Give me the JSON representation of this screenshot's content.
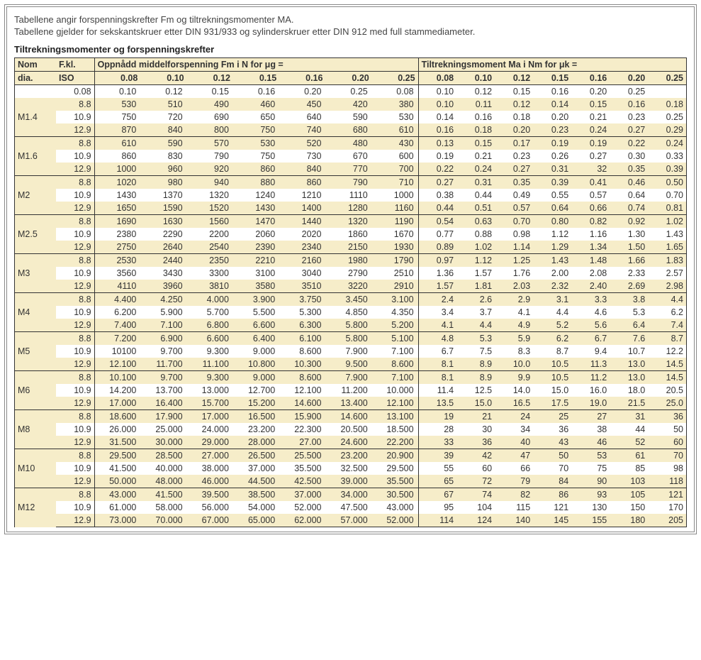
{
  "intro_line1": "Tabellene angir forspenningskrefter Fm og tiltrekningsmomenter MA.",
  "intro_line2": "Tabellene gjelder for sekskantskruer etter DIN 931/933 og sylinderskruer etter DIN 912 med full stammediameter.",
  "section_title": "Tiltrekningsmomenter og forspenningskrefter",
  "col_dia_l1": "Nom",
  "col_dia_l2": "dia.",
  "col_iso_l1": "F.kl.",
  "col_iso_l2": "ISO",
  "fm_header": "Oppnådd middelforspenning Fm i N for μg =",
  "ma_header": "Tiltrekningsmoment Ma i Nm for μk =",
  "mu_values": [
    "0.08",
    "0.10",
    "0.12",
    "0.15",
    "0.16",
    "0.20",
    "0.25"
  ],
  "extra_top_row": {
    "iso": "0.08",
    "fm": [
      "0.10",
      "0.12",
      "0.15",
      "0.16",
      "0.20",
      "0.25",
      "0.08"
    ],
    "ma": [
      "0.10",
      "0.12",
      "0.15",
      "0.16",
      "0.20",
      "0.25",
      ""
    ]
  },
  "groups": [
    {
      "dia": "M1.4",
      "rows": [
        {
          "iso": "8.8",
          "fm": [
            "530",
            "510",
            "490",
            "460",
            "450",
            "420",
            "380"
          ],
          "ma": [
            "0.10",
            "0.11",
            "0.12",
            "0.14",
            "0.15",
            "0.16",
            "0.18"
          ]
        },
        {
          "iso": "10.9",
          "fm": [
            "750",
            "720",
            "690",
            "650",
            "640",
            "590",
            "530"
          ],
          "ma": [
            "0.14",
            "0.16",
            "0.18",
            "0.20",
            "0.21",
            "0.23",
            "0.25"
          ]
        },
        {
          "iso": "12.9",
          "fm": [
            "870",
            "840",
            "800",
            "750",
            "740",
            "680",
            "610"
          ],
          "ma": [
            "0.16",
            "0.18",
            "0.20",
            "0.23",
            "0.24",
            "0.27",
            "0.29"
          ]
        }
      ]
    },
    {
      "dia": "M1.6",
      "rows": [
        {
          "iso": "8.8",
          "fm": [
            "610",
            "590",
            "570",
            "530",
            "520",
            "480",
            "430"
          ],
          "ma": [
            "0.13",
            "0.15",
            "0.17",
            "0.19",
            "0.19",
            "0.22",
            "0.24"
          ]
        },
        {
          "iso": "10.9",
          "fm": [
            "860",
            "830",
            "790",
            "750",
            "730",
            "670",
            "600"
          ],
          "ma": [
            "0.19",
            "0.21",
            "0.23",
            "0.26",
            "0.27",
            "0.30",
            "0.33"
          ]
        },
        {
          "iso": "12.9",
          "fm": [
            "1000",
            "960",
            "920",
            "860",
            "840",
            "770",
            "700"
          ],
          "ma": [
            "0.22",
            "0.24",
            "0.27",
            "0.31",
            "32",
            "0.35",
            "0.39"
          ]
        }
      ]
    },
    {
      "dia": "M2",
      "rows": [
        {
          "iso": "8.8",
          "fm": [
            "1020",
            "980",
            "940",
            "880",
            "860",
            "790",
            "710"
          ],
          "ma": [
            "0.27",
            "0.31",
            "0.35",
            "0.39",
            "0.41",
            "0.46",
            "0.50"
          ]
        },
        {
          "iso": "10.9",
          "fm": [
            "1430",
            "1370",
            "1320",
            "1240",
            "1210",
            "1110",
            "1000"
          ],
          "ma": [
            "0.38",
            "0.44",
            "0.49",
            "0.55",
            "0.57",
            "0.64",
            "0.70"
          ]
        },
        {
          "iso": "12.9",
          "fm": [
            "1650",
            "1590",
            "1520",
            "1430",
            "1400",
            "1280",
            "1160"
          ],
          "ma": [
            "0.44",
            "0.51",
            "0.57",
            "0.64",
            "0.66",
            "0.74",
            "0.81"
          ]
        }
      ]
    },
    {
      "dia": "M2.5",
      "rows": [
        {
          "iso": "8.8",
          "fm": [
            "1690",
            "1630",
            "1560",
            "1470",
            "1440",
            "1320",
            "1190"
          ],
          "ma": [
            "0.54",
            "0.63",
            "0.70",
            "0.80",
            "0.82",
            "0.92",
            "1.02"
          ]
        },
        {
          "iso": "10.9",
          "fm": [
            "2380",
            "2290",
            "2200",
            "2060",
            "2020",
            "1860",
            "1670"
          ],
          "ma": [
            "0.77",
            "0.88",
            "0.98",
            "1.12",
            "1.16",
            "1.30",
            "1.43"
          ]
        },
        {
          "iso": "12.9",
          "fm": [
            "2750",
            "2640",
            "2540",
            "2390",
            "2340",
            "2150",
            "1930"
          ],
          "ma": [
            "0.89",
            "1.02",
            "1.14",
            "1.29",
            "1.34",
            "1.50",
            "1.65"
          ]
        }
      ]
    },
    {
      "dia": "M3",
      "rows": [
        {
          "iso": "8.8",
          "fm": [
            "2530",
            "2440",
            "2350",
            "2210",
            "2160",
            "1980",
            "1790"
          ],
          "ma": [
            "0.97",
            "1.12",
            "1.25",
            "1.43",
            "1.48",
            "1.66",
            "1.83"
          ]
        },
        {
          "iso": "10.9",
          "fm": [
            "3560",
            "3430",
            "3300",
            "3100",
            "3040",
            "2790",
            "2510"
          ],
          "ma": [
            "1.36",
            "1.57",
            "1.76",
            "2.00",
            "2.08",
            "2.33",
            "2.57"
          ]
        },
        {
          "iso": "12.9",
          "fm": [
            "4110",
            "3960",
            "3810",
            "3580",
            "3510",
            "3220",
            "2910"
          ],
          "ma": [
            "1.57",
            "1.81",
            "2.03",
            "2.32",
            "2.40",
            "2.69",
            "2.98"
          ]
        }
      ]
    },
    {
      "dia": "M4",
      "rows": [
        {
          "iso": "8.8",
          "fm": [
            "4.400",
            "4.250",
            "4.000",
            "3.900",
            "3.750",
            "3.450",
            "3.100"
          ],
          "ma": [
            "2.4",
            "2.6",
            "2.9",
            "3.1",
            "3.3",
            "3.8",
            "4.4"
          ]
        },
        {
          "iso": "10.9",
          "fm": [
            "6.200",
            "5.900",
            "5.700",
            "5.500",
            "5.300",
            "4.850",
            "4.350"
          ],
          "ma": [
            "3.4",
            "3.7",
            "4.1",
            "4.4",
            "4.6",
            "5.3",
            "6.2"
          ]
        },
        {
          "iso": "12.9",
          "fm": [
            "7.400",
            "7.100",
            "6.800",
            "6.600",
            "6.300",
            "5.800",
            "5.200"
          ],
          "ma": [
            "4.1",
            "4.4",
            "4.9",
            "5.2",
            "5.6",
            "6.4",
            "7.4"
          ]
        }
      ]
    },
    {
      "dia": "M5",
      "rows": [
        {
          "iso": "8.8",
          "fm": [
            "7.200",
            "6.900",
            "6.600",
            "6.400",
            "6.100",
            "5.800",
            "5.100"
          ],
          "ma": [
            "4.8",
            "5.3",
            "5.9",
            "6.2",
            "6.7",
            "7.6",
            "8.7"
          ]
        },
        {
          "iso": "10.9",
          "fm": [
            "10100",
            "9.700",
            "9.300",
            "9.000",
            "8.600",
            "7.900",
            "7.100"
          ],
          "ma": [
            "6.7",
            "7.5",
            "8.3",
            "8.7",
            "9.4",
            "10.7",
            "12.2"
          ]
        },
        {
          "iso": "12.9",
          "fm": [
            "12.100",
            "11.700",
            "11.100",
            "10.800",
            "10.300",
            "9.500",
            "8.600"
          ],
          "ma": [
            "8.1",
            "8.9",
            "10.0",
            "10.5",
            "11.3",
            "13.0",
            "14.5"
          ]
        }
      ]
    },
    {
      "dia": "M6",
      "rows": [
        {
          "iso": "8.8",
          "fm": [
            "10.100",
            "9.700",
            "9.300",
            "9.000",
            "8.600",
            "7.900",
            "7.100"
          ],
          "ma": [
            "8.1",
            "8.9",
            "9.9",
            "10.5",
            "11.2",
            "13.0",
            "14.5"
          ]
        },
        {
          "iso": "10.9",
          "fm": [
            "14.200",
            "13.700",
            "13.000",
            "12.700",
            "12.100",
            "11.200",
            "10.000"
          ],
          "ma": [
            "11.4",
            "12.5",
            "14.0",
            "15.0",
            "16.0",
            "18.0",
            "20.5"
          ]
        },
        {
          "iso": "12.9",
          "fm": [
            "17.000",
            "16.400",
            "15.700",
            "15.200",
            "14.600",
            "13.400",
            "12.100"
          ],
          "ma": [
            "13.5",
            "15.0",
            "16.5",
            "17.5",
            "19.0",
            "21.5",
            "25.0"
          ]
        }
      ]
    },
    {
      "dia": "M8",
      "rows": [
        {
          "iso": "8.8",
          "fm": [
            "18.600",
            "17.900",
            "17.000",
            "16.500",
            "15.900",
            "14.600",
            "13.100"
          ],
          "ma": [
            "19",
            "21",
            "24",
            "25",
            "27",
            "31",
            "36"
          ]
        },
        {
          "iso": "10.9",
          "fm": [
            "26.000",
            "25.000",
            "24.000",
            "23.200",
            "22.300",
            "20.500",
            "18.500"
          ],
          "ma": [
            "28",
            "30",
            "34",
            "36",
            "38",
            "44",
            "50"
          ]
        },
        {
          "iso": "12.9",
          "fm": [
            "31.500",
            "30.000",
            "29.000",
            "28.000",
            "27.00",
            "24.600",
            "22.200"
          ],
          "ma": [
            "33",
            "36",
            "40",
            "43",
            "46",
            "52",
            "60"
          ]
        }
      ]
    },
    {
      "dia": "M10",
      "rows": [
        {
          "iso": "8.8",
          "fm": [
            "29.500",
            "28.500",
            "27.000",
            "26.500",
            "25.500",
            "23.200",
            "20.900"
          ],
          "ma": [
            "39",
            "42",
            "47",
            "50",
            "53",
            "61",
            "70"
          ]
        },
        {
          "iso": "10.9",
          "fm": [
            "41.500",
            "40.000",
            "38.000",
            "37.000",
            "35.500",
            "32.500",
            "29.500"
          ],
          "ma": [
            "55",
            "60",
            "66",
            "70",
            "75",
            "85",
            "98"
          ]
        },
        {
          "iso": "12.9",
          "fm": [
            "50.000",
            "48.000",
            "46.000",
            "44.500",
            "42.500",
            "39.000",
            "35.500"
          ],
          "ma": [
            "65",
            "72",
            "79",
            "84",
            "90",
            "103",
            "118"
          ]
        }
      ]
    },
    {
      "dia": "M12",
      "rows": [
        {
          "iso": "8.8",
          "fm": [
            "43.000",
            "41.500",
            "39.500",
            "38.500",
            "37.000",
            "34.000",
            "30.500"
          ],
          "ma": [
            "67",
            "74",
            "82",
            "86",
            "93",
            "105",
            "121"
          ]
        },
        {
          "iso": "10.9",
          "fm": [
            "61.000",
            "58.000",
            "56.000",
            "54.000",
            "52.000",
            "47.500",
            "43.000"
          ],
          "ma": [
            "95",
            "104",
            "115",
            "121",
            "130",
            "150",
            "170"
          ]
        },
        {
          "iso": "12.9",
          "fm": [
            "73.000",
            "70.000",
            "67.000",
            "65.000",
            "62.000",
            "57.000",
            "52.000"
          ],
          "ma": [
            "114",
            "124",
            "140",
            "145",
            "155",
            "180",
            "205"
          ]
        }
      ]
    }
  ]
}
